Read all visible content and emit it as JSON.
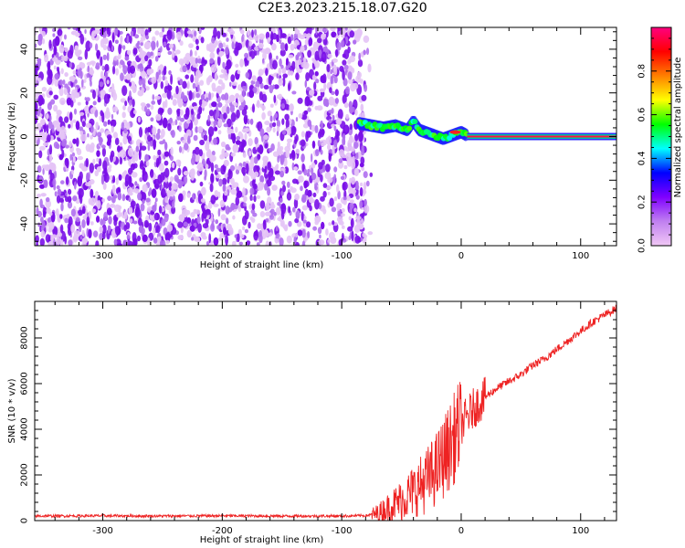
{
  "figure": {
    "title": "C2E3.2023.215.18.07.G20"
  },
  "chart_data": [
    {
      "type": "heatmap",
      "title": "C2E3.2023.215.18.07.G20",
      "xlabel": "Height of straight line (km)",
      "ylabel": "Frequency (Hz)",
      "xlim": [
        -357,
        130
      ],
      "ylim": [
        -50,
        50
      ],
      "x_ticks": [
        -300,
        -200,
        -100,
        0,
        100
      ],
      "y_ticks": [
        -40,
        -20,
        0,
        20,
        40
      ],
      "grid": false,
      "colorbar": {
        "label": "Normalized spectral amplitude",
        "range": [
          0,
          1
        ],
        "ticks": [
          0.0,
          0.2,
          0.4,
          0.6,
          0.8
        ],
        "colormap": [
          "#f1c8f5",
          "#c080f0",
          "#8000ff",
          "#0000ff",
          "#00ffff",
          "#00ff00",
          "#ffff00",
          "#ff8000",
          "#ff0000",
          "#ff0080"
        ]
      },
      "noise_region": {
        "x_range": [
          -357,
          -80
        ],
        "frequency_range": [
          -50,
          50
        ],
        "amplitude_range": [
          0.0,
          0.12
        ]
      },
      "signal_trace": {
        "x": [
          -85,
          -75,
          -65,
          -55,
          -45,
          -40,
          -35,
          -25,
          -15,
          -5,
          0,
          5,
          130
        ],
        "frequency": [
          6,
          5,
          4,
          5,
          3,
          7,
          3,
          1,
          -1,
          1,
          2,
          0.5,
          0
        ],
        "amplitude": [
          0.45,
          0.5,
          0.55,
          0.6,
          0.65,
          0.6,
          0.55,
          0.5,
          0.45,
          0.5,
          0.5,
          0.9,
          0.95
        ]
      }
    },
    {
      "type": "line",
      "title": "",
      "xlabel": "Height of straight line (km)",
      "ylabel": "SNR (10 * v/v)",
      "xlim": [
        -357,
        130
      ],
      "ylim": [
        0,
        9600
      ],
      "x_ticks": [
        -300,
        -200,
        -100,
        0,
        100
      ],
      "y_ticks": [
        0,
        2000,
        4000,
        6000,
        8000
      ],
      "grid": false,
      "series": [
        {
          "color": "#ee2222",
          "x": [
            -357,
            -300,
            -250,
            -200,
            -150,
            -100,
            -80,
            -70,
            -60,
            -50,
            -40,
            -30,
            -20,
            -10,
            0,
            10,
            20,
            30,
            40,
            50,
            60,
            70,
            80,
            90,
            100,
            110,
            120,
            130
          ],
          "y": [
            200,
            210,
            200,
            210,
            200,
            200,
            220,
            300,
            600,
            900,
            1300,
            1700,
            2300,
            3200,
            4200,
            4900,
            5400,
            5800,
            6100,
            6400,
            6800,
            7100,
            7500,
            7900,
            8300,
            8700,
            9000,
            9300
          ]
        }
      ]
    }
  ]
}
